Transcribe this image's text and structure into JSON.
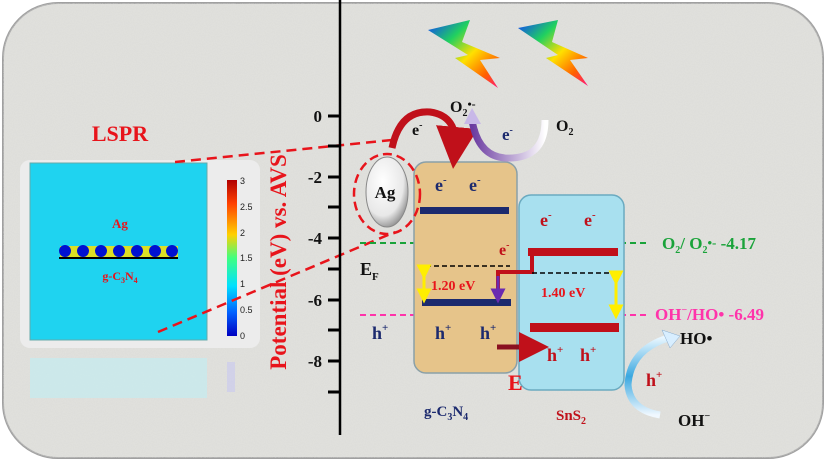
{
  "colors": {
    "background": "#dcdcd8",
    "accent_red": "#e8141b",
    "navy": "#1c2a6e",
    "green": "#1aa33a",
    "pink": "#ff33aa",
    "gcn_box": "#e6c48a",
    "sns2_box": "#a8e0ef",
    "field_map": "#1fd3f0"
  },
  "inset": {
    "title": "LSPR",
    "ag_label": "Ag",
    "gcn_label": {
      "base1": "g-C",
      "sub1": "3",
      "base2": "N",
      "sub2": "4"
    },
    "colorbar_ticks": [
      "3",
      "2.5",
      "2",
      "1.5",
      "1",
      "0.5",
      "0"
    ],
    "colorbar_colors": [
      "#b00000",
      "#ff4000",
      "#ffd000",
      "#40ff80",
      "#00e0ff",
      "#0060ff",
      "#0000c0"
    ]
  },
  "axis": {
    "label": "Potential (eV) vs. AVS",
    "ticks": [
      "0",
      "-2",
      "-4",
      "-6",
      "-8"
    ]
  },
  "ag_particle": {
    "label": "Ag"
  },
  "electron": {
    "base": "e",
    "sup": "-"
  },
  "hole": {
    "base": "h",
    "sup": "+"
  },
  "fermi": {
    "base": "E",
    "sub": "F"
  },
  "gcn": {
    "label": {
      "base1": "g-C",
      "sub1": "3",
      "base2": "N",
      "sub2": "4"
    },
    "band_gap": "1.20 eV"
  },
  "sns2": {
    "label": {
      "base": "SnS",
      "sub": "2"
    },
    "band_gap": "1.40 eV"
  },
  "e_field_label": "E",
  "o2_radical": {
    "base": "O",
    "sub": "2",
    "sup": "•-"
  },
  "o2": {
    "base": "O",
    "sub": "2"
  },
  "o2_level": {
    "a": "O",
    "a_sub": "2",
    "b": "/ O",
    "b_sub": "2",
    "b_sup": "•-",
    "value": " -4.17"
  },
  "oh_level": {
    "a": "OH",
    "a_sup": "−",
    "b": "/HO•",
    "value": "  -6.49"
  },
  "ho_radical": "HO•",
  "oh_minus": {
    "base": "OH",
    "sup": "−"
  },
  "icons": [
    "lightning-icon",
    "lightning-icon"
  ]
}
